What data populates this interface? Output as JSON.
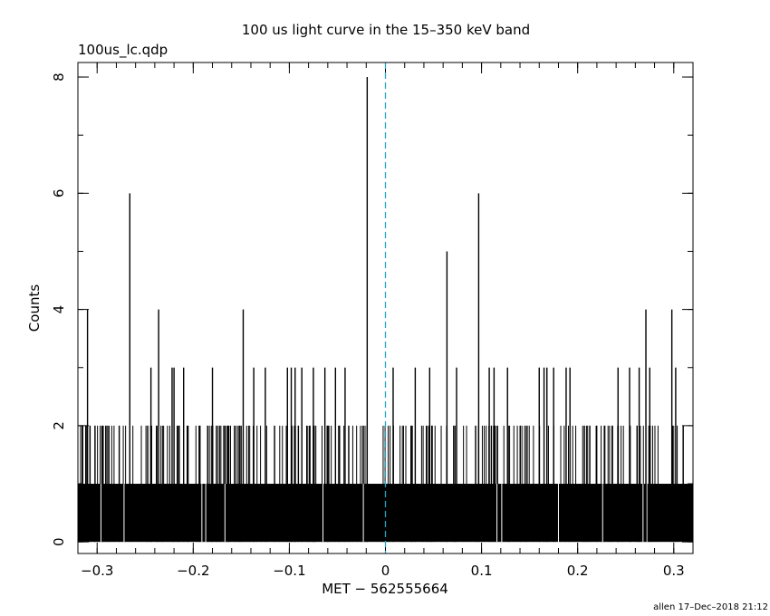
{
  "chart_data": {
    "type": "line",
    "subtitle": "100us_lc.qdp",
    "title": "100 us light curve in the 15–350 keV band",
    "xlabel": "MET − 562555664",
    "ylabel": "Counts",
    "footer": "allen 17–Dec–2018 21:12",
    "xlim": [
      -0.32,
      0.32
    ],
    "ylim": [
      -0.2,
      8.25
    ],
    "x_ticks": [
      {
        "value": -0.3,
        "label": "−0.3"
      },
      {
        "value": -0.2,
        "label": "−0.2"
      },
      {
        "value": -0.1,
        "label": "−0.1"
      },
      {
        "value": 0,
        "label": "0"
      },
      {
        "value": 0.1,
        "label": "0.1"
      },
      {
        "value": 0.2,
        "label": "0.2"
      },
      {
        "value": 0.3,
        "label": "0.3"
      }
    ],
    "y_ticks": [
      {
        "value": 0,
        "label": "0"
      },
      {
        "value": 2,
        "label": "2"
      },
      {
        "value": 4,
        "label": "4"
      },
      {
        "value": 6,
        "label": "6"
      },
      {
        "value": 8,
        "label": "8"
      }
    ],
    "bin_width": 0.0001,
    "baseline_counts": 1,
    "series": [
      {
        "trigger_time": 0,
        "trigger_line_color": "#2aa3c0",
        "bar_color": "#000000",
        "spikes": [
          {
            "x": -0.31,
            "y": 4
          },
          {
            "x": -0.266,
            "y": 6
          },
          {
            "x": -0.236,
            "y": 4
          },
          {
            "x": -0.148,
            "y": 4
          },
          {
            "x": -0.019,
            "y": 8
          },
          {
            "x": 0.064,
            "y": 5
          },
          {
            "x": 0.097,
            "y": 6
          },
          {
            "x": 0.271,
            "y": 4
          },
          {
            "x": 0.298,
            "y": 4
          },
          {
            "x": -0.244,
            "y": 3
          },
          {
            "x": -0.222,
            "y": 3
          },
          {
            "x": -0.22,
            "y": 3
          },
          {
            "x": -0.21,
            "y": 3
          },
          {
            "x": -0.18,
            "y": 3
          },
          {
            "x": -0.137,
            "y": 3
          },
          {
            "x": -0.125,
            "y": 3
          },
          {
            "x": -0.102,
            "y": 3
          },
          {
            "x": -0.098,
            "y": 3
          },
          {
            "x": -0.094,
            "y": 3
          },
          {
            "x": -0.087,
            "y": 3
          },
          {
            "x": -0.075,
            "y": 3
          },
          {
            "x": -0.063,
            "y": 3
          },
          {
            "x": -0.052,
            "y": 3
          },
          {
            "x": -0.042,
            "y": 3
          },
          {
            "x": 0.008,
            "y": 3
          },
          {
            "x": 0.031,
            "y": 3
          },
          {
            "x": 0.046,
            "y": 3
          },
          {
            "x": 0.074,
            "y": 3
          },
          {
            "x": 0.108,
            "y": 3
          },
          {
            "x": 0.113,
            "y": 3
          },
          {
            "x": 0.127,
            "y": 3
          },
          {
            "x": 0.16,
            "y": 3
          },
          {
            "x": 0.165,
            "y": 3
          },
          {
            "x": 0.168,
            "y": 3
          },
          {
            "x": 0.175,
            "y": 3
          },
          {
            "x": 0.188,
            "y": 3
          },
          {
            "x": 0.192,
            "y": 3
          },
          {
            "x": 0.242,
            "y": 3
          },
          {
            "x": 0.254,
            "y": 3
          },
          {
            "x": 0.264,
            "y": 3
          },
          {
            "x": 0.275,
            "y": 3
          },
          {
            "x": 0.302,
            "y": 3
          }
        ],
        "gaps": [
          -0.296,
          -0.272,
          -0.191,
          -0.187,
          -0.167,
          -0.065,
          -0.023,
          0.116,
          0.121,
          0.18,
          0.226,
          0.268,
          0.272
        ]
      }
    ]
  }
}
